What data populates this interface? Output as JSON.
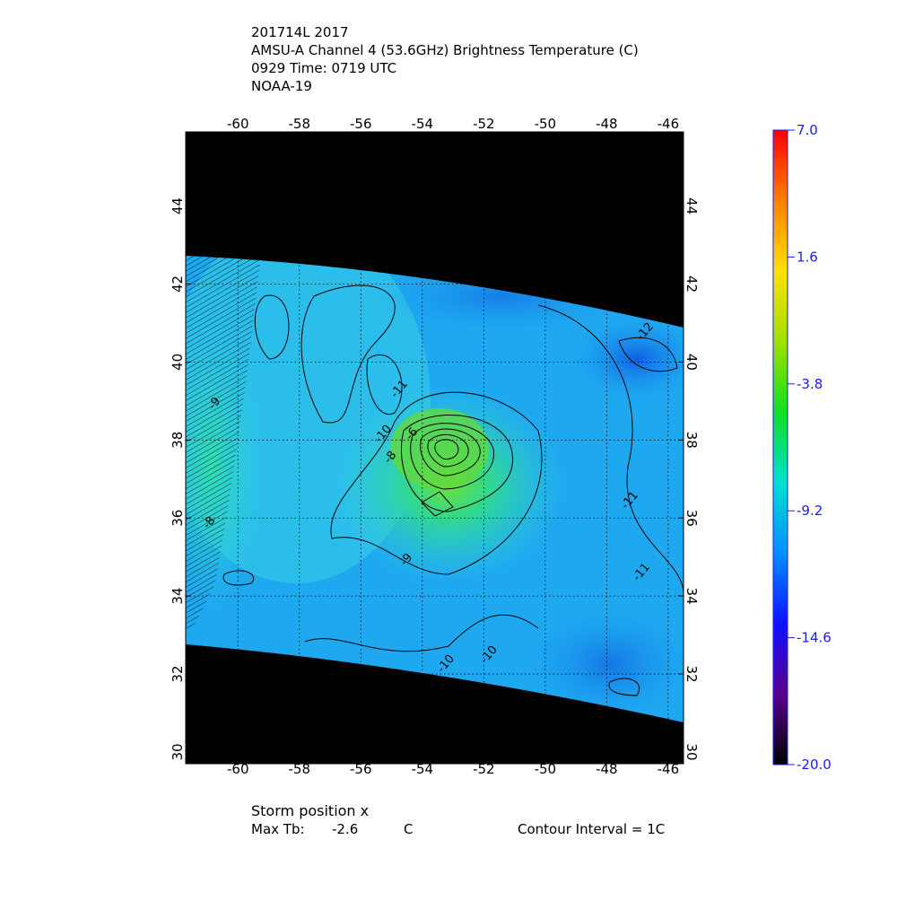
{
  "header": {
    "lines": [
      "201714L 2017",
      "AMSU-A Channel 4 (53.6GHz) Brightness Temperature (C)",
      "0929 Time: 0719 UTC",
      "NOAA-19"
    ]
  },
  "map": {
    "xlim": [
      -61.7,
      -45.5
    ],
    "ylim": [
      29.7,
      45.9
    ],
    "xticks": [
      -60,
      -58,
      -56,
      -54,
      -52,
      -50,
      -48,
      -46
    ],
    "yticks": [
      30,
      32,
      34,
      36,
      38,
      40,
      42,
      44
    ],
    "contour_labels": [
      "-12",
      "-11",
      "-10",
      "-8",
      "-6",
      "-9",
      "-11",
      "-11",
      "-10",
      "-10",
      "-9",
      "-8"
    ]
  },
  "colorbar": {
    "lim": [
      -20,
      7
    ],
    "ticks": [
      {
        "value": 7,
        "label": "7.0"
      },
      1.6,
      -3.8,
      -9.2,
      -14.6,
      {
        "value": -20,
        "label": "-20.0"
      }
    ],
    "colors": [
      "#000000",
      "#5a0090",
      "#1010ff",
      "#0090ff",
      "#00e0d0",
      "#10e020",
      "#a0e000",
      "#ffe000",
      "#ff8000",
      "#ff0000"
    ]
  },
  "footer": {
    "storm": "Storm position x",
    "max_label": "Max Tb:",
    "max_value": "-2.6",
    "max_unit": "C",
    "interval": "Contour Interval = 1C"
  }
}
